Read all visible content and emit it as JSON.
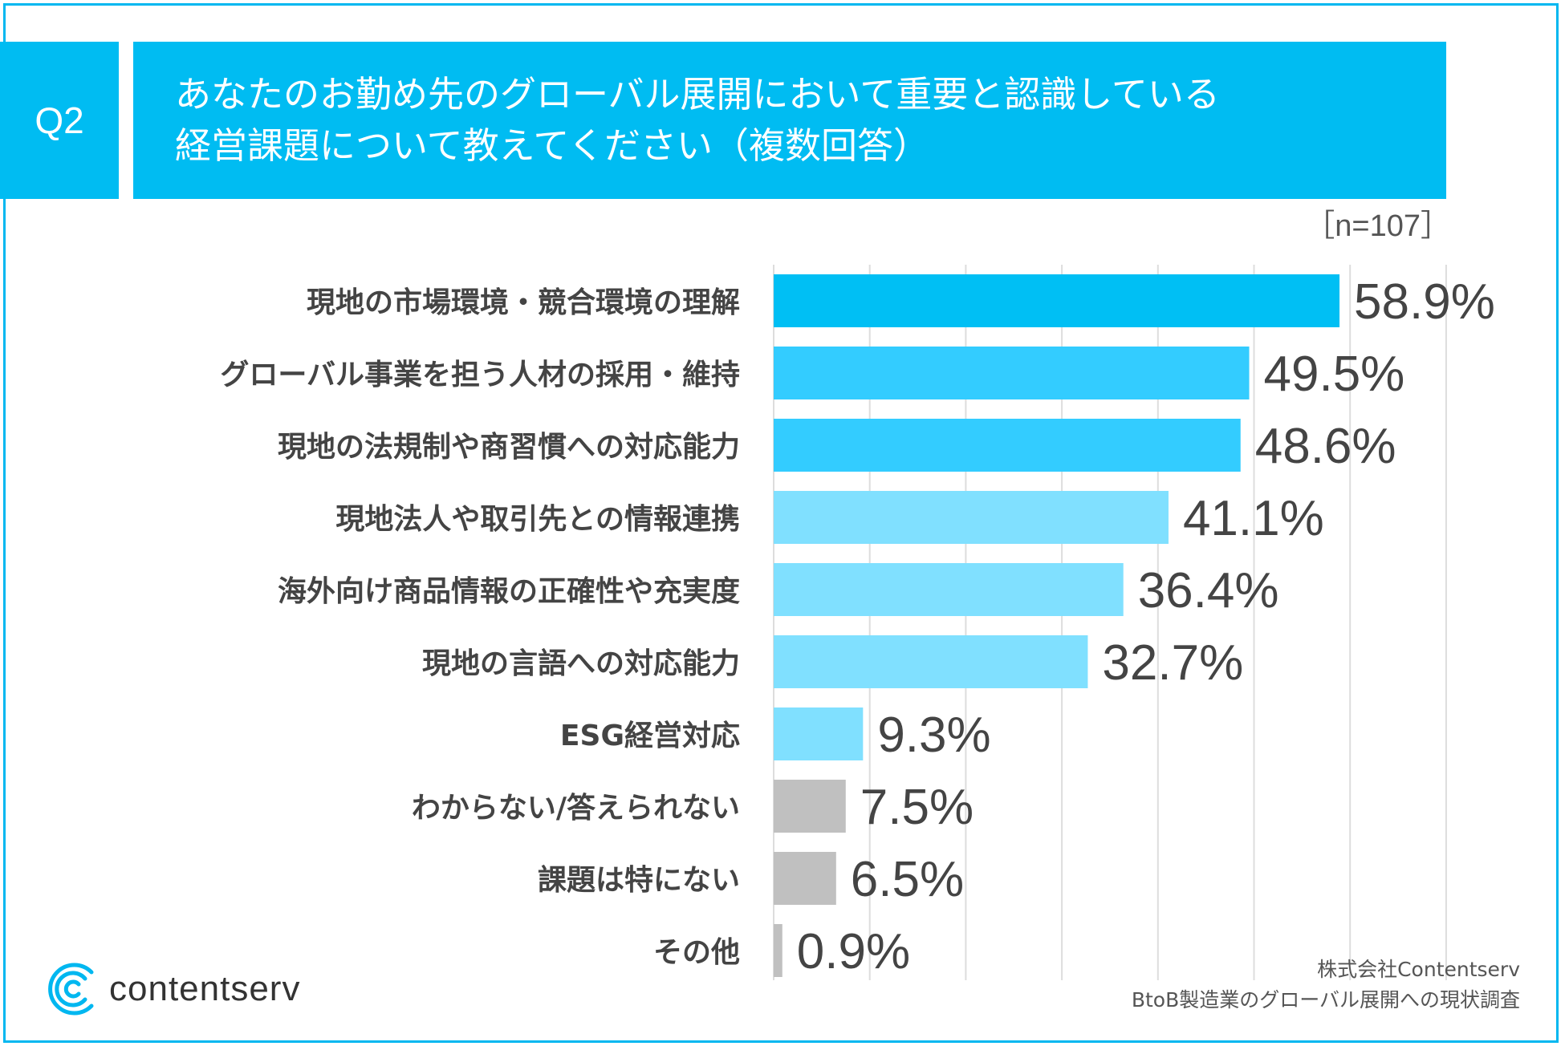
{
  "header": {
    "badge": "Q2",
    "title_line1": "あなたのお勤め先のグローバル展開において重要と認識している",
    "title_line2": "経営課題について教えてください（複数回答）",
    "sample_size": "［n=107］"
  },
  "chart_data": {
    "type": "bar",
    "orientation": "horizontal",
    "title": "あなたのお勤め先のグローバル展開において重要と認識している経営課題について教えてください（複数回答）",
    "categories": [
      "現地の市場環境・競合環境の理解",
      "グローバル事業を担う人材の採用・維持",
      "現地の法規制や商習慣への対応能力",
      "現地法人や取引先との情報連携",
      "海外向け商品情報の正確性や充実度",
      "現地の言語への対応能力",
      "ESG経営対応",
      "わからない/答えられない",
      "課題は特にない",
      "その他"
    ],
    "values": [
      58.9,
      49.5,
      48.6,
      41.1,
      36.4,
      32.7,
      9.3,
      7.5,
      6.5,
      0.9
    ],
    "value_labels": [
      "58.9%",
      "49.5%",
      "48.6%",
      "41.1%",
      "36.4%",
      "32.7%",
      "9.3%",
      "7.5%",
      "6.5%",
      "0.9%"
    ],
    "bar_colors": [
      "#00bff4",
      "#33ccff",
      "#33ccff",
      "#80e0ff",
      "#80e0ff",
      "#80e0ff",
      "#80e0ff",
      "#c0c0c0",
      "#c0c0c0",
      "#c0c0c0"
    ],
    "xlim": [
      0,
      70
    ],
    "grid": true,
    "xlabel": "",
    "ylabel": ""
  },
  "brand": {
    "name": "contentserv",
    "accent": "#00b7f0"
  },
  "footer": {
    "line1": "株式会社Contentserv",
    "line2": "BtoB製造業のグローバル展開への現状調査"
  }
}
